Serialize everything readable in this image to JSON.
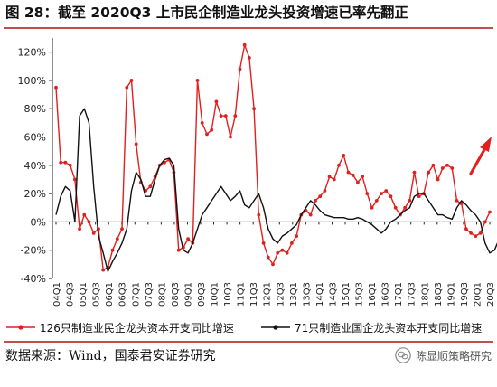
{
  "figure": {
    "title": "图 28：截至 2020Q3 上市民企制造业龙头投资增速已率先翻正",
    "source": "数据来源：Wind，国泰君安证券研究",
    "watermark": "陈显顺策略研究",
    "colors": {
      "accent_rule": "#c0504d",
      "series_private": "#e0201f",
      "series_state": "#111111",
      "arrow": "#e0201f"
    }
  },
  "chart_data": {
    "type": "line",
    "title": "",
    "xlabel": "",
    "ylabel": "",
    "ylim": [
      -40,
      130
    ],
    "yticks": [
      -40,
      -20,
      0,
      20,
      40,
      60,
      80,
      100,
      120
    ],
    "ytick_labels": [
      "-40%",
      "-20%",
      "0%",
      "20%",
      "40%",
      "60%",
      "80%",
      "100%",
      "120%"
    ],
    "x_labels": [
      "04Q1",
      "04Q3",
      "05Q1",
      "05Q3",
      "06Q1",
      "06Q3",
      "07Q1",
      "07Q3",
      "08Q1",
      "08Q3",
      "09Q1",
      "09Q3",
      "10Q1",
      "10Q3",
      "11Q1",
      "11Q3",
      "12Q1",
      "12Q3",
      "13Q1",
      "13Q3",
      "14Q1",
      "14Q3",
      "15Q1",
      "15Q3",
      "16Q1",
      "16Q3",
      "17Q1",
      "17Q3",
      "18Q1",
      "18Q3",
      "19Q1",
      "19Q3",
      "20Q1",
      "20Q3"
    ],
    "grid": false,
    "legend_position": "bottom",
    "annotation": "red upward arrow at right end",
    "series": [
      {
        "name": "126只制造业民企龙头资本开支同比增速",
        "color": "#e0201f",
        "marker": "dot",
        "values": [
          95,
          42,
          42,
          40,
          30,
          -5,
          5,
          0,
          -8,
          -5,
          -34,
          -32,
          -20,
          -12,
          -5,
          95,
          100,
          55,
          28,
          22,
          25,
          32,
          40,
          42,
          44,
          35,
          -20,
          -18,
          -12,
          -15,
          100,
          70,
          62,
          65,
          85,
          75,
          75,
          60,
          75,
          108,
          125,
          116,
          80,
          5,
          -15,
          -25,
          -30,
          -22,
          -20,
          -22,
          -15,
          -10,
          5,
          8,
          5,
          15,
          18,
          22,
          32,
          30,
          40,
          47,
          35,
          33,
          28,
          32,
          20,
          10,
          15,
          20,
          22,
          18,
          10,
          5,
          10,
          15,
          35,
          18,
          20,
          35,
          40,
          30,
          38,
          40,
          38,
          15,
          13,
          -5,
          -8,
          -10,
          -8,
          0,
          7
        ]
      },
      {
        "name": "71只制造业国企龙头资本开支同比增速",
        "color": "#111111",
        "marker": "none",
        "values": [
          5,
          18,
          25,
          22,
          0,
          75,
          80,
          70,
          25,
          -10,
          -22,
          -35,
          -28,
          -22,
          -15,
          -5,
          22,
          35,
          30,
          18,
          18,
          30,
          40,
          44,
          45,
          40,
          -5,
          -20,
          -22,
          -15,
          -5,
          5,
          10,
          15,
          20,
          25,
          20,
          15,
          18,
          22,
          12,
          10,
          15,
          20,
          10,
          -5,
          -12,
          -15,
          -10,
          -8,
          -5,
          -2,
          5,
          10,
          15,
          12,
          8,
          5,
          4,
          3,
          3,
          3,
          2,
          2,
          3,
          2,
          0,
          -2,
          -5,
          -8,
          -5,
          0,
          2,
          5,
          8,
          10,
          18,
          20,
          20,
          15,
          10,
          5,
          5,
          3,
          2,
          10,
          15,
          12,
          8,
          5,
          0,
          -15,
          -22,
          -20,
          -12,
          -10
        ]
      }
    ]
  }
}
